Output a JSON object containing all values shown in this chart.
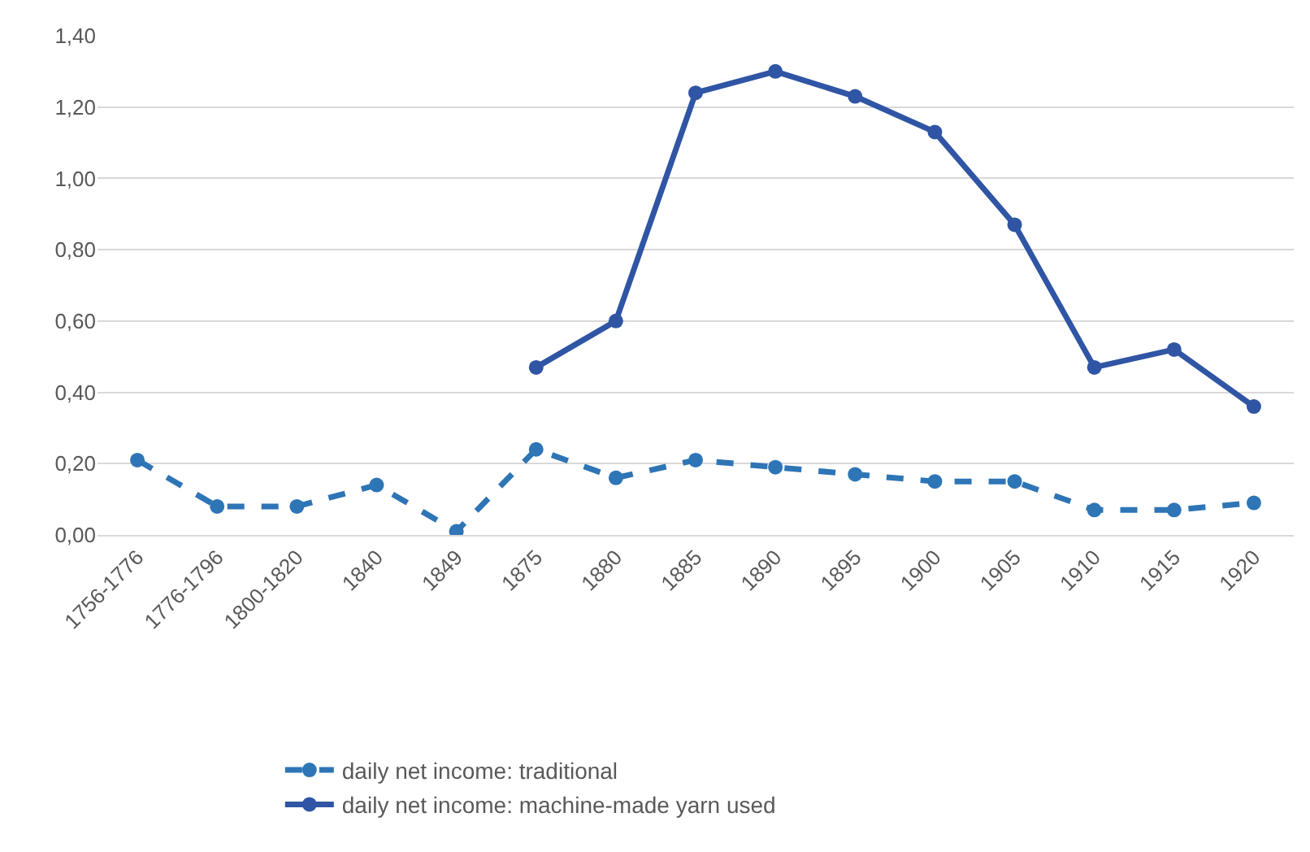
{
  "chart_data": {
    "type": "line",
    "categories": [
      "1756-1776",
      "1776-1796",
      "1800-1820",
      "1840",
      "1849",
      "1875",
      "1880",
      "1885",
      "1890",
      "1895",
      "1900",
      "1905",
      "1910",
      "1915",
      "1920"
    ],
    "series": [
      {
        "name": "daily net income: traditional",
        "color": "#2e75b6",
        "line_style": "dashed",
        "values": [
          0.21,
          0.08,
          0.08,
          0.14,
          0.01,
          0.24,
          0.16,
          0.21,
          0.19,
          0.17,
          0.15,
          0.15,
          0.07,
          0.07,
          0.09
        ]
      },
      {
        "name": "daily net income: machine-made yarn used",
        "color": "#2f55a4",
        "line_style": "solid",
        "values": [
          null,
          null,
          null,
          null,
          null,
          0.47,
          0.6,
          1.24,
          1.3,
          1.23,
          1.13,
          0.87,
          0.47,
          0.52,
          0.36
        ]
      }
    ],
    "ylim": [
      0,
      1.4
    ],
    "yticks": [
      {
        "value": 0,
        "label": "0,00"
      },
      {
        "value": 0.2,
        "label": "0,20"
      },
      {
        "value": 0.4,
        "label": "0,40"
      },
      {
        "value": 0.6,
        "label": "0,60"
      },
      {
        "value": 0.8,
        "label": "0,80"
      },
      {
        "value": 1.0,
        "label": "1,00"
      },
      {
        "value": 1.2,
        "label": "1,20"
      },
      {
        "value": 1.4,
        "label": "1,40"
      }
    ],
    "grid": "y",
    "legend": "bottom",
    "marker": "circle"
  }
}
